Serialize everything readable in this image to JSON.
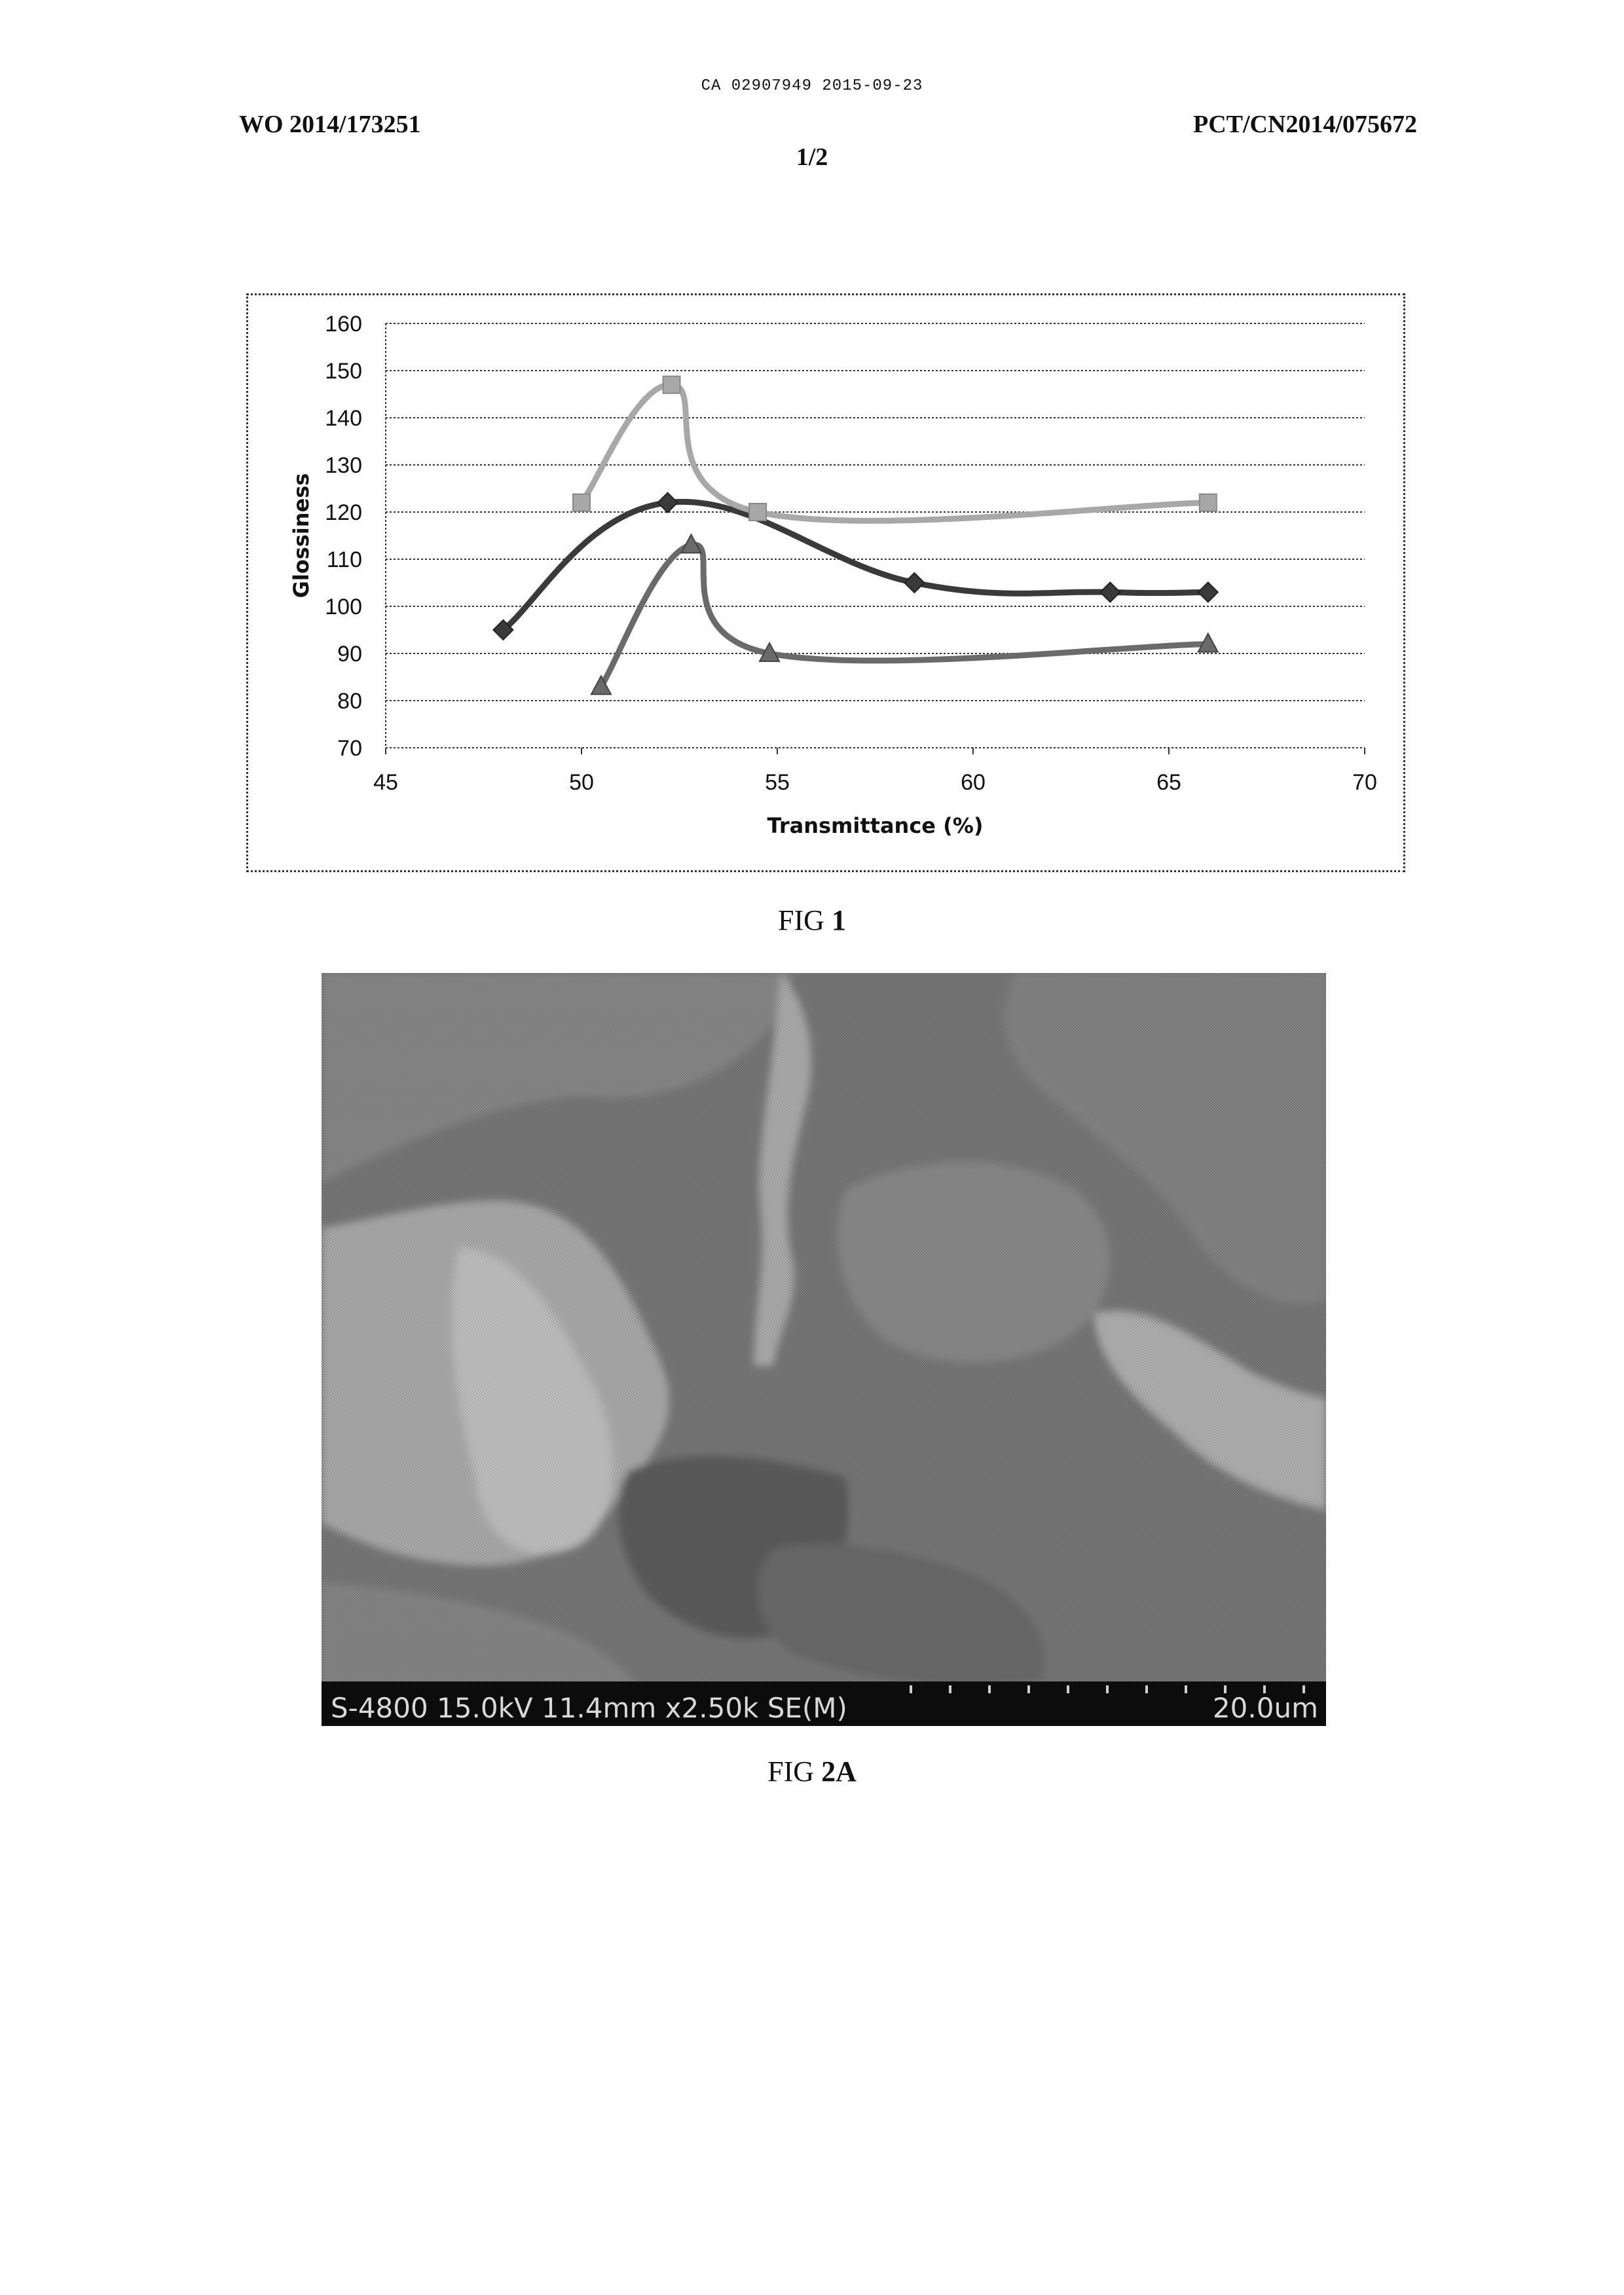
{
  "header": {
    "ca_line": "CA 02907949 2015-09-23",
    "publication_number": "WO 2014/173251",
    "application_number": "PCT/CN2014/075672",
    "sheet": "1/2"
  },
  "figures": {
    "fig1": {
      "prefix": "FIG ",
      "number": "1"
    },
    "fig2a": {
      "prefix": "FIG ",
      "number": "2A"
    }
  },
  "sem": {
    "info": "S-4800 15.0kV 11.4mm x2.50k SE(M)",
    "scale": "20.0um"
  },
  "chart_data": {
    "type": "scatter",
    "subtype": "smooth lines with markers",
    "xlabel": "Transmittance (%)",
    "ylabel": "Glossiness",
    "xlim": [
      45,
      70
    ],
    "ylim": [
      70,
      160
    ],
    "x_ticks": [
      45,
      50,
      55,
      60,
      65,
      70
    ],
    "y_ticks": [
      70,
      80,
      90,
      100,
      110,
      120,
      130,
      140,
      150,
      160
    ],
    "grid": "horizontal dotted",
    "legend": "none",
    "series": [
      {
        "marker": "diamond",
        "color": "#3a3a3a",
        "x": [
          48.0,
          52.2,
          58.5,
          63.5,
          66.0
        ],
        "y": [
          95,
          122,
          105,
          103,
          103
        ]
      },
      {
        "marker": "square",
        "color": "#a8a8a8",
        "x": [
          50.0,
          52.3,
          54.5,
          66.0
        ],
        "y": [
          122,
          147,
          120,
          122
        ]
      },
      {
        "marker": "triangle",
        "color": "#6a6a6a",
        "x": [
          50.5,
          52.8,
          54.8,
          66.0
        ],
        "y": [
          83,
          113,
          90,
          92
        ]
      }
    ]
  }
}
